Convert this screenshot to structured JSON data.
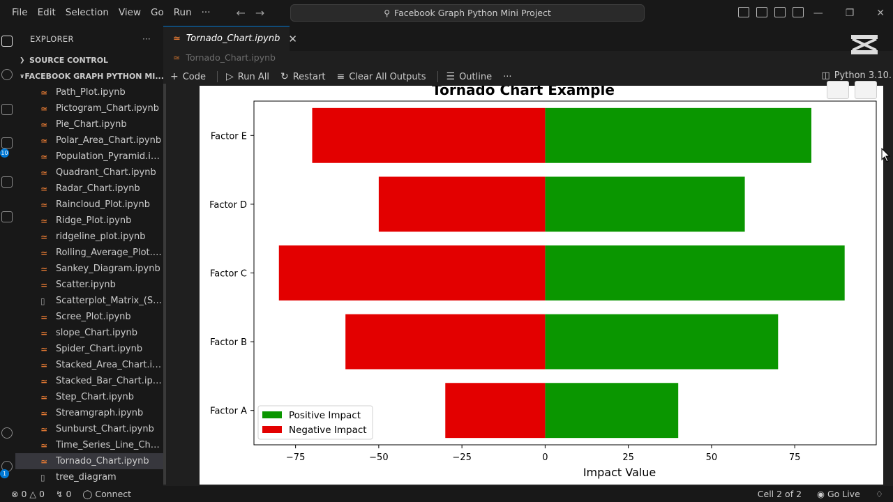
{
  "menu": [
    "File",
    "Edit",
    "Selection",
    "View",
    "Go",
    "Run",
    "···"
  ],
  "search": {
    "label": "Facebook Graph Python Mini Project"
  },
  "sidebar": {
    "title": "EXPLORER",
    "more": "···",
    "source_control": "SOURCE CONTROL",
    "project": "FACEBOOK GRAPH PYTHON MI...",
    "files": [
      {
        "name": "Path_Plot.ipynb"
      },
      {
        "name": "Pictogram_Chart.ipynb"
      },
      {
        "name": "Pie_Chart.ipynb"
      },
      {
        "name": "Polar_Area_Chart.ipynb"
      },
      {
        "name": "Population_Pyramid.ipy..."
      },
      {
        "name": "Quadrant_Chart.ipynb"
      },
      {
        "name": "Radar_Chart.ipynb"
      },
      {
        "name": "Raincloud_Plot.ipynb"
      },
      {
        "name": "Ridge_Plot.ipynb"
      },
      {
        "name": "ridgeline_plot.ipynb"
      },
      {
        "name": "Rolling_Average_Plot.ip..."
      },
      {
        "name": "Sankey_Diagram.ipynb"
      },
      {
        "name": "Scatter.ipynb"
      },
      {
        "name": "Scatterplot_Matrix_(SPL..."
      },
      {
        "name": "Scree_Plot.ipynb"
      },
      {
        "name": "slope_Chart.ipynb"
      },
      {
        "name": "Spider_Chart.ipynb"
      },
      {
        "name": "Stacked_Area_Chart.ipy..."
      },
      {
        "name": "Stacked_Bar_Chart.ipynb"
      },
      {
        "name": "Step_Chart.ipynb"
      },
      {
        "name": "Streamgraph.ipynb"
      },
      {
        "name": "Sunburst_Chart.ipynb"
      },
      {
        "name": "Time_Series_Line_Chart...."
      },
      {
        "name": "Tornado_Chart.ipynb"
      },
      {
        "name": "tree_diagram"
      }
    ]
  },
  "activity_badges": {
    "extensions": "10",
    "accounts": "1"
  },
  "tab": {
    "label": "Tornado_Chart.ipynb",
    "close": "✕"
  },
  "breadcrumb": "Tornado_Chart.ipynb",
  "toolbar": {
    "code": "Code",
    "run_all": "Run All",
    "restart": "Restart",
    "clear": "Clear All Outputs",
    "outline": "Outline",
    "more": "···",
    "kernel": "Python 3.10."
  },
  "status": {
    "errors": "0",
    "warnings": "0",
    "ports": "0",
    "connect": "Connect",
    "cell": "Cell 2 of 2",
    "golive": "Go Live"
  },
  "colors": {
    "positive": "#0a9600",
    "negative": "#e30000",
    "accent": "#0078d4",
    "file_icon": "#e37933"
  },
  "chart_data": {
    "type": "bar",
    "orientation": "horizontal",
    "title": "Tornado Chart Example",
    "xlabel": "Impact Value",
    "ylabel": "",
    "categories": [
      "Factor A",
      "Factor B",
      "Factor C",
      "Factor D",
      "Factor E"
    ],
    "series": [
      {
        "name": "Positive Impact",
        "values": [
          40,
          70,
          90,
          60,
          80
        ],
        "color": "#0a9600"
      },
      {
        "name": "Negative Impact",
        "values": [
          -30,
          -60,
          -80,
          -50,
          -70
        ],
        "color": "#e30000"
      }
    ],
    "xticks": [
      -75,
      -50,
      -25,
      0,
      25,
      50,
      75
    ],
    "xtick_labels": [
      "−75",
      "−50",
      "−25",
      "0",
      "25",
      "50",
      "75"
    ],
    "xlim": [
      -87.5,
      99.5
    ],
    "legend": "lower-left",
    "grid": false
  }
}
